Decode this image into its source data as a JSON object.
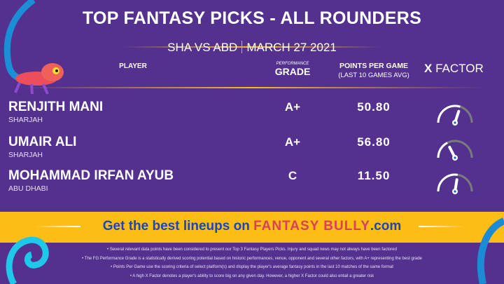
{
  "header": {
    "title": "TOP FANTASY PICKS - ALL ROUNDERS",
    "match": "SHA VS ABD",
    "date": "MARCH 27 2021"
  },
  "columns": {
    "player": "PLAYER",
    "grade_small": "PERFORMANCE",
    "grade": "GRADE",
    "ppg": "POINTS PER GAME",
    "ppg_sub": "(LAST 10 GAMES AVG)",
    "xfactor_x": "X",
    "xfactor": "FACTOR"
  },
  "players": [
    {
      "name": "RENJITH MANI",
      "team": "SHARJAH",
      "grade": "A+",
      "ppg": "50.80",
      "xfactor": 0.6
    },
    {
      "name": "UMAIR ALI",
      "team": "SHARJAH",
      "grade": "A+",
      "ppg": "56.80",
      "xfactor": 0.35
    },
    {
      "name": "MOHAMMAD IRFAN AYUB",
      "team": "ABU DHABI",
      "grade": "C",
      "ppg": "11.50",
      "xfactor": 0.55
    }
  ],
  "cta": {
    "text": "Get the best lineups on",
    "brand": "FANTASY BULLY",
    "suffix": ".com"
  },
  "footnotes": [
    "Several relevant data points have been considered to present our Top 3 Fantasy Players Picks. Injury and squad news may not always have been factored",
    "The FG Performance Grade is a statistically derived scoring potential based on historic performances, venue, opponent and several other factors, with A+ representing the best grade",
    "Points Per Game use the scoring criteria of select platform(s) and display the player's average fantasy points in the last 10 matches of the same format",
    "A high X Factor denotes a player's ability to score big on any given day. However, a higher X Factor could also entail a greater risk"
  ],
  "colors": {
    "background": "#54318f",
    "accent": "#fbbd16",
    "cta": "#1c47b8",
    "gauge_track": "#7a7a7a"
  }
}
